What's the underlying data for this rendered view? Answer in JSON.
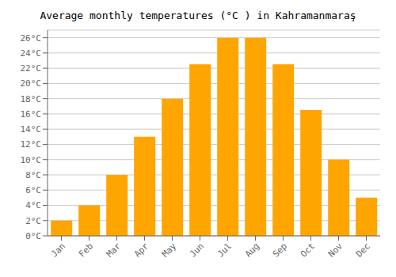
{
  "chart_data": {
    "type": "bar",
    "title": "Average monthly temperatures (°C ) in Kahramanmaraş",
    "categories": [
      "Jan",
      "Feb",
      "Mar",
      "Apr",
      "May",
      "Jun",
      "Jul",
      "Aug",
      "Sep",
      "Oct",
      "Nov",
      "Dec"
    ],
    "values": [
      2,
      4,
      8,
      13,
      18,
      22.5,
      26,
      26,
      22.5,
      16.5,
      10,
      5
    ],
    "color": "#FFA500",
    "ylim": [
      0,
      27
    ],
    "yticks": [
      {
        "value": 0,
        "label": "0°C"
      },
      {
        "value": 2,
        "label": "2°C"
      },
      {
        "value": 4,
        "label": "4°C"
      },
      {
        "value": 6,
        "label": "6°C"
      },
      {
        "value": 8,
        "label": "8°C"
      },
      {
        "value": 10,
        "label": "10°C"
      },
      {
        "value": 12,
        "label": "12°C"
      },
      {
        "value": 14,
        "label": "14°C"
      },
      {
        "value": 16,
        "label": "16°C"
      },
      {
        "value": 18,
        "label": "18°C"
      },
      {
        "value": 20,
        "label": "20°C"
      },
      {
        "value": 22,
        "label": "22°C"
      },
      {
        "value": 24,
        "label": "24°C"
      },
      {
        "value": 26,
        "label": "26°C"
      }
    ],
    "grid": true
  }
}
